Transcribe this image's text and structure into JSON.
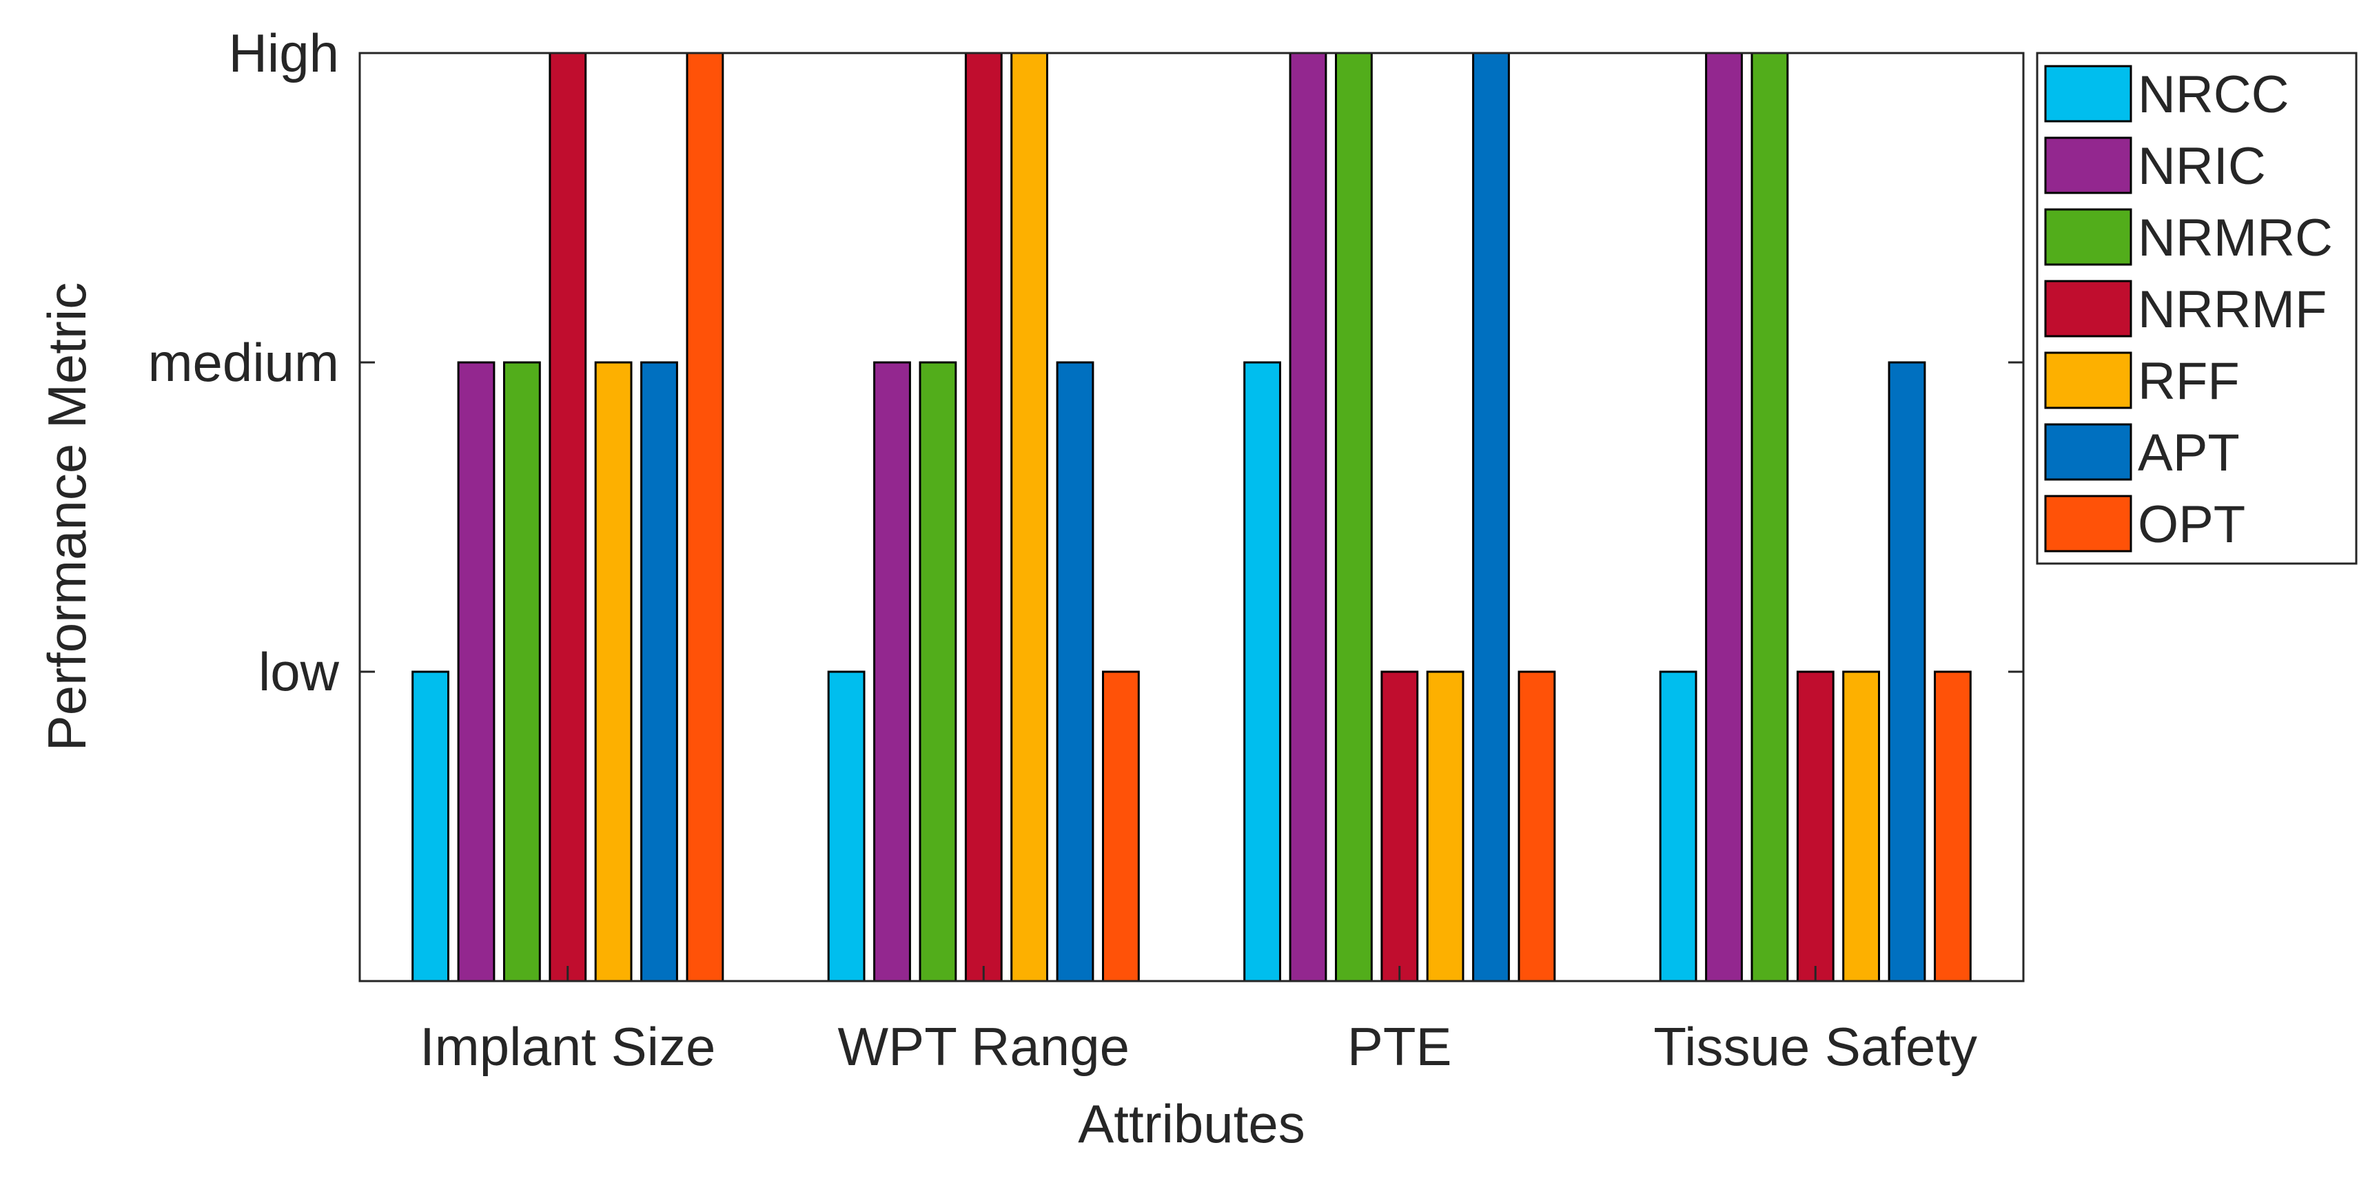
{
  "chart_data": {
    "type": "bar",
    "title": "",
    "xlabel": "Attributes",
    "ylabel": "Performance Metric",
    "categories": [
      "Implant Size",
      "WPT Range",
      "PTE",
      "Tissue Safety"
    ],
    "ylim": [
      0,
      3
    ],
    "yticks": [
      {
        "value": 1,
        "label": "low"
      },
      {
        "value": 2,
        "label": "medium"
      },
      {
        "value": 3,
        "label": "High"
      }
    ],
    "legend_position": "outside-top-right",
    "series": [
      {
        "name": "NRCC",
        "color": "#00BEEE",
        "values": [
          1,
          1,
          2,
          1
        ]
      },
      {
        "name": "NRIC",
        "color": "#93278F",
        "values": [
          2,
          2,
          3,
          3
        ]
      },
      {
        "name": "NRMRC",
        "color": "#52AD1B",
        "values": [
          2,
          2,
          3,
          3
        ]
      },
      {
        "name": "NRRMF",
        "color": "#C00D2E",
        "values": [
          3,
          3,
          1,
          1
        ]
      },
      {
        "name": "RFF",
        "color": "#FDB000",
        "values": [
          2,
          3,
          1,
          1
        ]
      },
      {
        "name": "APT",
        "color": "#0070C0",
        "values": [
          2,
          2,
          3,
          2
        ]
      },
      {
        "name": "OPT",
        "color": "#FF5208",
        "values": [
          3,
          1,
          1,
          1
        ]
      }
    ]
  }
}
